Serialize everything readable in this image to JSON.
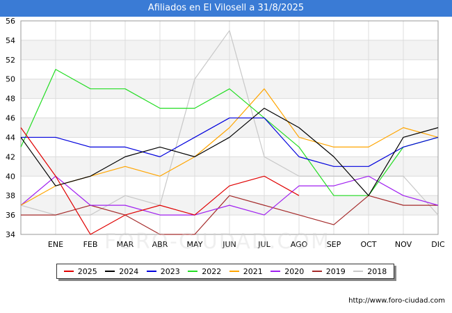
{
  "header": {
    "title": "Afiliados en El Vilosell a 31/8/2025"
  },
  "footer": {
    "url": "http://www.foro-ciudad.com",
    "watermark": "FORO-CIUDAD.COM"
  },
  "chart_data": {
    "type": "line",
    "title": "Afiliados en El Vilosell a 31/8/2025",
    "categories": [
      "",
      "ENE",
      "FEB",
      "MAR",
      "ABR",
      "MAY",
      "JUN",
      "JUL",
      "AGO",
      "SEP",
      "OCT",
      "NOV",
      "DIC"
    ],
    "ylim": [
      34,
      56
    ],
    "yticks": [
      34,
      36,
      38,
      40,
      42,
      44,
      46,
      48,
      50,
      52,
      54,
      56
    ],
    "grid": true,
    "legend_position": "bottom",
    "series": [
      {
        "name": "2025",
        "color": "#e00000",
        "values": [
          45,
          40,
          34,
          36,
          37,
          36,
          39,
          40,
          38,
          null,
          null,
          null,
          null
        ]
      },
      {
        "name": "2024",
        "color": "#000000",
        "values": [
          44,
          39,
          40,
          42,
          43,
          42,
          44,
          47,
          45,
          42,
          38,
          44,
          45
        ]
      },
      {
        "name": "2023",
        "color": "#0000dd",
        "values": [
          44,
          44,
          43,
          43,
          42,
          44,
          46,
          46,
          42,
          41,
          41,
          43,
          44
        ]
      },
      {
        "name": "2022",
        "color": "#22dd22",
        "values": [
          43,
          51,
          49,
          49,
          47,
          47,
          49,
          46,
          43,
          38,
          38,
          43,
          44
        ]
      },
      {
        "name": "2021",
        "color": "#ffa500",
        "values": [
          37,
          39,
          40,
          41,
          40,
          42,
          45,
          49,
          44,
          43,
          43,
          45,
          44
        ]
      },
      {
        "name": "2020",
        "color": "#a020f0",
        "values": [
          37,
          40,
          37,
          37,
          36,
          36,
          37,
          36,
          39,
          39,
          40,
          38,
          37
        ]
      },
      {
        "name": "2019",
        "color": "#a52a2a",
        "values": [
          36,
          36,
          37,
          36,
          34,
          34,
          38,
          37,
          36,
          35,
          38,
          37,
          37
        ]
      },
      {
        "name": "2018",
        "color": "#c8c8c8",
        "values": [
          37,
          36,
          36,
          38,
          37,
          50,
          55,
          42,
          40,
          40,
          40,
          40,
          36
        ]
      }
    ]
  }
}
